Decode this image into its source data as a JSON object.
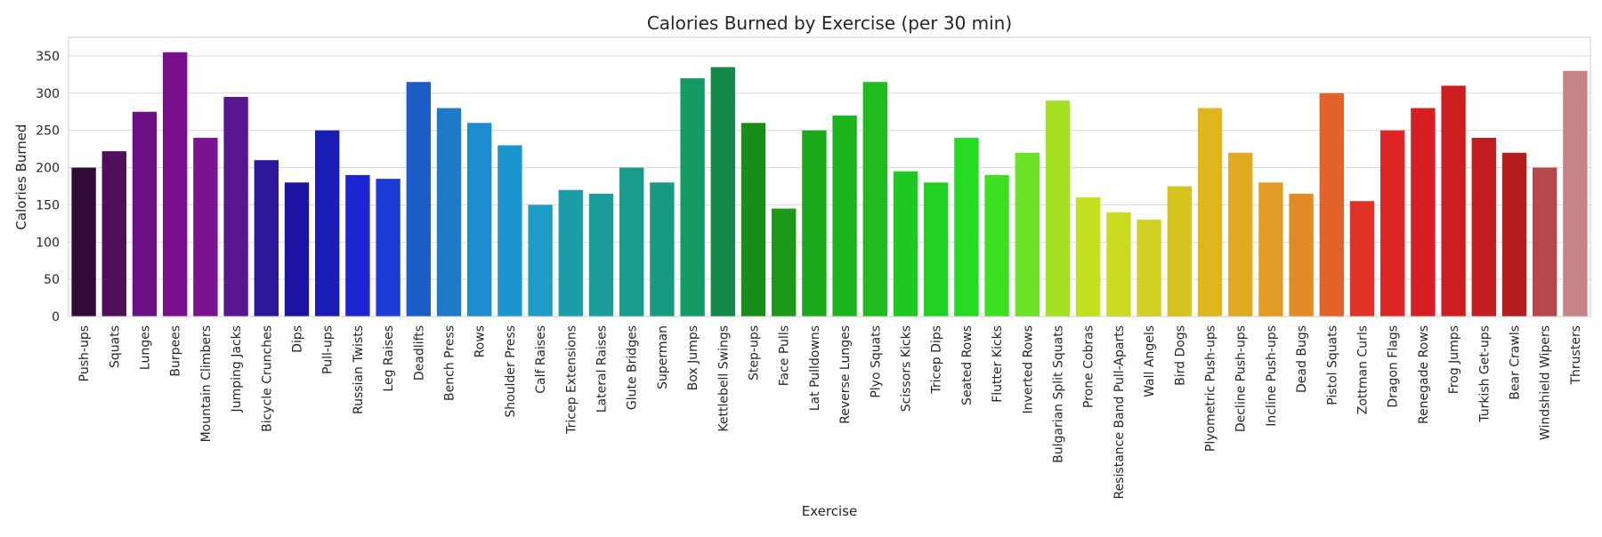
{
  "chart_data": {
    "type": "bar",
    "title": "Calories Burned by Exercise (per 30 min)",
    "xlabel": "Exercise",
    "ylabel": "Calories Burned",
    "ylim": [
      0,
      375
    ],
    "yticks": [
      0,
      50,
      100,
      150,
      200,
      250,
      300,
      350
    ],
    "grid": "horizontal",
    "categories": [
      "Push-ups",
      "Squats",
      "Lunges",
      "Burpees",
      "Mountain Climbers",
      "Jumping Jacks",
      "Bicycle Crunches",
      "Dips",
      "Pull-ups",
      "Russian Twists",
      "Leg Raises",
      "Deadlifts",
      "Bench Press",
      "Rows",
      "Shoulder Press",
      "Calf Raises",
      "Tricep Extensions",
      "Lateral Raises",
      "Glute Bridges",
      "Superman",
      "Box Jumps",
      "Kettlebell Swings",
      "Step-ups",
      "Face Pulls",
      "Lat Pulldowns",
      "Reverse Lunges",
      "Plyo Squats",
      "Scissors Kicks",
      "Tricep Dips",
      "Seated Rows",
      "Flutter Kicks",
      "Inverted Rows",
      "Bulgarian Split Squats",
      "Prone Cobras",
      "Resistance Band Pull-Aparts",
      "Wall Angels",
      "Bird Dogs",
      "Plyometric Push-ups",
      "Decline Push-ups",
      "Incline Push-ups",
      "Dead Bugs",
      "Pistol Squats",
      "Zottman Curls",
      "Dragon Flags",
      "Renegade Rows",
      "Frog Jumps",
      "Turkish Get-ups",
      "Bear Crawls",
      "Windshield Wipers",
      "Thrusters"
    ],
    "values": [
      200,
      222,
      275,
      355,
      240,
      295,
      210,
      180,
      250,
      190,
      185,
      315,
      280,
      260,
      230,
      150,
      170,
      165,
      200,
      180,
      320,
      335,
      260,
      145,
      250,
      270,
      315,
      195,
      180,
      240,
      190,
      220,
      290,
      160,
      140,
      130,
      175,
      280,
      220,
      180,
      165,
      300,
      155,
      250,
      280,
      310,
      240,
      220,
      200,
      330
    ],
    "colors": [
      "#2f0a35",
      "#4f0f5a",
      "#6a1186",
      "#7a0f8e",
      "#7b128e",
      "#5a1591",
      "#2e1699",
      "#1c14a3",
      "#1a1db4",
      "#1c24d3",
      "#1d3cd7",
      "#1d5cc8",
      "#1d7ac9",
      "#1d8bcf",
      "#1d96cf",
      "#1c9cc6",
      "#1a9da8",
      "#1a9c9c",
      "#189a8d",
      "#189a82",
      "#159a65",
      "#15894b",
      "#188d1a",
      "#1a9a18",
      "#1ba81a",
      "#1bb41d",
      "#20bb1f",
      "#20c822",
      "#22d021",
      "#24db22",
      "#3de020",
      "#6de028",
      "#a6e022",
      "#c4e020",
      "#c8db20",
      "#d0cf22",
      "#d8c41e",
      "#e0b61e",
      "#e0aa22",
      "#e29c24",
      "#e28a25",
      "#e2622a",
      "#e23225",
      "#e02526",
      "#d61f22",
      "#cc1d1f",
      "#c21c1e",
      "#b61d1f",
      "#b6474c",
      "#c58587"
    ]
  }
}
